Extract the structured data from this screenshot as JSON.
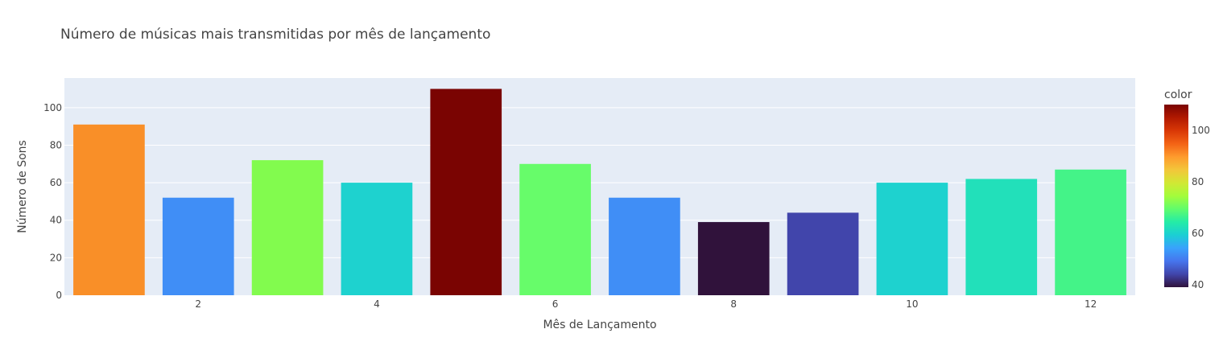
{
  "chart_data": {
    "type": "bar",
    "title": "Número de músicas mais transmitidas por mês de lançamento",
    "xlabel": "Mês de Lançamento",
    "ylabel": "Número de Sons",
    "x": [
      1,
      2,
      3,
      4,
      5,
      6,
      7,
      8,
      9,
      10,
      11,
      12
    ],
    "values": [
      91,
      52,
      72,
      60,
      110,
      70,
      52,
      39,
      44,
      60,
      62,
      67
    ],
    "x_ticks": [
      2,
      4,
      6,
      8,
      10,
      12
    ],
    "y_ticks": [
      0,
      20,
      40,
      60,
      80,
      100
    ],
    "xlim": [
      0.5,
      12.5
    ],
    "ylim": [
      0,
      115.79
    ],
    "grid": true,
    "colorbar": {
      "title": "color",
      "min": 39,
      "max": 110,
      "ticks": [
        40,
        60,
        80,
        100
      ],
      "colorscale": [
        "#30123b",
        "#4145ab",
        "#4675ed",
        "#39a2fc",
        "#1bcfd4",
        "#24eca6",
        "#61fc6c",
        "#a4fc3b",
        "#d1e834",
        "#f3c63a",
        "#fe9b2d",
        "#f36315",
        "#d93806",
        "#b11901",
        "#7a0402"
      ]
    },
    "bar_colors": [
      "#f98f28",
      "#408ef6",
      "#82fb4e",
      "#1ed2cf",
      "#7a0402",
      "#67fc6a",
      "#408ef6",
      "#30123b",
      "#4145ab",
      "#1ed2cf",
      "#22e0ba",
      "#44f388"
    ],
    "colors": {
      "plot_background": "#e5ecf6",
      "gridline": "#ffffff",
      "text": "#444444"
    }
  }
}
